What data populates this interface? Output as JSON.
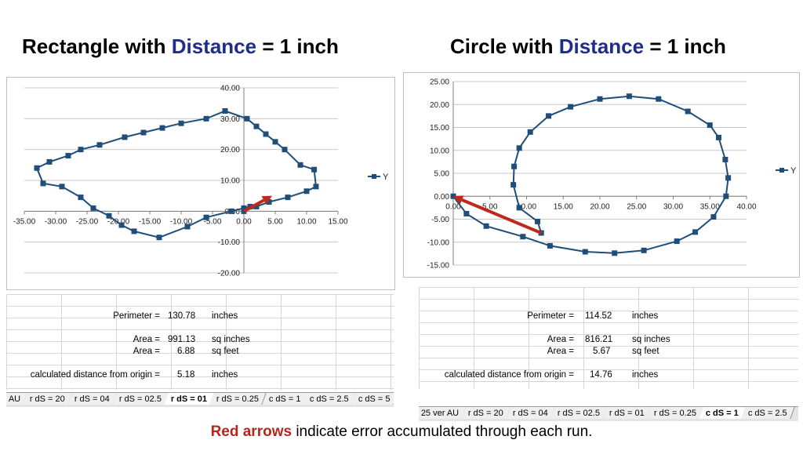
{
  "left_title": {
    "pre": "Rectangle with ",
    "accent": "Distance",
    "post": " = 1 inch"
  },
  "right_title": {
    "pre": "Circle with ",
    "accent": "Distance",
    "post": " = 1 inch"
  },
  "colors": {
    "series": "#1f4e79",
    "arrow": "#c0281c",
    "accent": "#1f2d8a"
  },
  "chart_data": [
    {
      "type": "scatter",
      "title": "",
      "legend": {
        "entries": [
          "Y"
        ],
        "placement": "right"
      },
      "xlim": [
        -35,
        15
      ],
      "ylim": [
        -20,
        40
      ],
      "xticks": [
        "-35.00",
        "-30.00",
        "-25.00",
        "-20.00",
        "-15.00",
        "-10.00",
        "-5.00",
        "0.00",
        "5.00",
        "10.00",
        "15.00"
      ],
      "yticks": [
        "-20.00",
        "-10.00",
        "0.00",
        "10.00",
        "20.00",
        "30.00",
        "40.00"
      ],
      "series": [
        {
          "name": "Y",
          "points": [
            [
              0,
              0
            ],
            [
              2,
              1.5
            ],
            [
              4,
              3
            ],
            [
              7,
              4.5
            ],
            [
              10,
              6.5
            ],
            [
              11.5,
              8
            ],
            [
              11.2,
              13.5
            ],
            [
              9,
              15
            ],
            [
              6.5,
              20
            ],
            [
              5,
              22.5
            ],
            [
              3.5,
              25
            ],
            [
              2,
              27.5
            ],
            [
              0.5,
              30
            ],
            [
              -3,
              32.5
            ],
            [
              -6,
              30
            ],
            [
              -10,
              28.5
            ],
            [
              -13,
              27
            ],
            [
              -16,
              25.5
            ],
            [
              -19,
              24
            ],
            [
              -23,
              21.5
            ],
            [
              -26,
              20
            ],
            [
              -28,
              18
            ],
            [
              -31,
              16
            ],
            [
              -33,
              14
            ],
            [
              -32,
              9
            ],
            [
              -29,
              8
            ],
            [
              -26,
              4.5
            ],
            [
              -24,
              1
            ],
            [
              -21.5,
              -1.5
            ],
            [
              -19.5,
              -4.5
            ],
            [
              -17.5,
              -6.5
            ],
            [
              -13.5,
              -8.5
            ],
            [
              -9,
              -5
            ],
            [
              -6,
              -2
            ],
            [
              -2,
              0
            ],
            [
              0,
              1
            ],
            [
              1,
              1.5
            ]
          ]
        }
      ],
      "arrow": {
        "from": [
          0,
          0
        ],
        "to": [
          4.5,
          5
        ]
      },
      "grid": true
    },
    {
      "type": "scatter",
      "title": "",
      "legend": {
        "entries": [
          "Y"
        ],
        "placement": "right"
      },
      "xlim": [
        0,
        40
      ],
      "ylim": [
        -15,
        25
      ],
      "xticks": [
        "0.00",
        "5.00",
        "10.00",
        "15.00",
        "20.00",
        "25.00",
        "30.00",
        "35.00",
        "40.00"
      ],
      "yticks": [
        "-15.00",
        "-10.00",
        "-5.00",
        "0.00",
        "5.00",
        "10.00",
        "15.00",
        "20.00",
        "25.00"
      ],
      "series": [
        {
          "name": "Y",
          "points": [
            [
              0,
              0
            ],
            [
              1.8,
              -3.8
            ],
            [
              4.5,
              -6.5
            ],
            [
              9.5,
              -8.8
            ],
            [
              13.2,
              -10.8
            ],
            [
              18,
              -12.1
            ],
            [
              22,
              -12.4
            ],
            [
              26,
              -11.8
            ],
            [
              30.5,
              -9.8
            ],
            [
              33,
              -7.8
            ],
            [
              35.5,
              -4.5
            ],
            [
              37.2,
              0
            ],
            [
              37.5,
              4
            ],
            [
              37.1,
              8
            ],
            [
              36.2,
              12.8
            ],
            [
              35,
              15.5
            ],
            [
              32,
              18.5
            ],
            [
              28,
              21.2
            ],
            [
              24,
              21.8
            ],
            [
              20,
              21.2
            ],
            [
              16,
              19.5
            ],
            [
              13,
              17.5
            ],
            [
              10.5,
              14
            ],
            [
              9,
              10.5
            ],
            [
              8.3,
              6.5
            ],
            [
              8.2,
              2.5
            ],
            [
              9,
              -2.5
            ],
            [
              11.5,
              -5.5
            ],
            [
              12,
              -8
            ]
          ]
        }
      ],
      "arrow": {
        "from": [
          12,
          -8
        ],
        "to": [
          0,
          0
        ]
      },
      "grid": true
    }
  ],
  "left_sheet": {
    "perimeter_label": "Perimeter =",
    "perimeter_value": "130.78",
    "perimeter_unit": "inches",
    "area_label_1": "Area =",
    "area_value_1": "991.13",
    "area_unit_1": "sq inches",
    "area_label_2": "Area =",
    "area_value_2": "6.88",
    "area_unit_2": "sq feet",
    "dist_label": "calculated distance from origin =",
    "dist_value": "5.18",
    "dist_unit": "inches",
    "tabs": [
      "AU",
      "r dS = 20",
      "r dS = 04",
      "r dS = 02.5",
      "r dS = 01",
      "r dS = 0.25",
      "c dS = 1",
      "c dS = 2.5",
      "c dS = 5"
    ],
    "active_tab": 4
  },
  "right_sheet": {
    "perimeter_label": "Perimeter =",
    "perimeter_value": "114.52",
    "perimeter_unit": "inches",
    "area_label_1": "Area =",
    "area_value_1": "816.21",
    "area_unit_1": "sq inches",
    "area_label_2": "Area =",
    "area_value_2": "5.67",
    "area_unit_2": "sq feet",
    "dist_label": "calculated distance from origin =",
    "dist_value": "14.76",
    "dist_unit": "inches",
    "tabs": [
      "25 ver AU",
      "r dS = 20",
      "r dS = 04",
      "r dS = 02.5",
      "r dS = 01",
      "r dS = 0.25",
      "c dS = 1",
      "c dS = 2.5"
    ],
    "active_tab": 6
  },
  "caption": {
    "highlight": "Red arrows",
    "rest": " indicate error accumulated through each run."
  }
}
